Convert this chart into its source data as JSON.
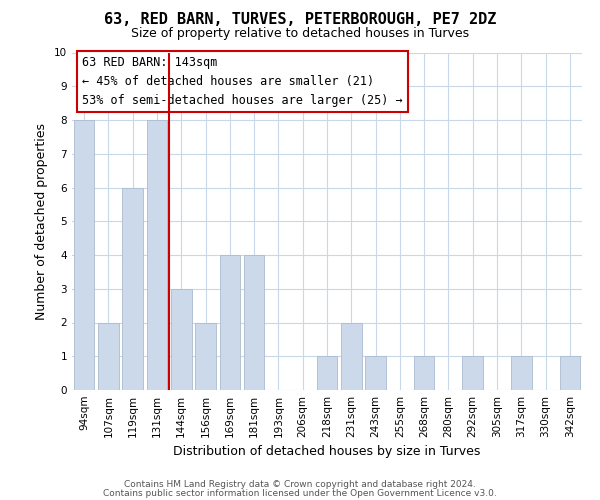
{
  "title": "63, RED BARN, TURVES, PETERBOROUGH, PE7 2DZ",
  "subtitle": "Size of property relative to detached houses in Turves",
  "xlabel": "Distribution of detached houses by size in Turves",
  "ylabel": "Number of detached properties",
  "bar_labels": [
    "94sqm",
    "107sqm",
    "119sqm",
    "131sqm",
    "144sqm",
    "156sqm",
    "169sqm",
    "181sqm",
    "193sqm",
    "206sqm",
    "218sqm",
    "231sqm",
    "243sqm",
    "255sqm",
    "268sqm",
    "280sqm",
    "292sqm",
    "305sqm",
    "317sqm",
    "330sqm",
    "342sqm"
  ],
  "bar_values": [
    8,
    2,
    6,
    8,
    3,
    2,
    4,
    4,
    0,
    0,
    1,
    2,
    1,
    0,
    1,
    0,
    1,
    0,
    1,
    0,
    1
  ],
  "bar_color": "#ccd9ea",
  "bar_edge_color": "#aabbd0",
  "vline_color": "#cc0000",
  "annotation_title": "63 RED BARN: 143sqm",
  "annotation_line1": "← 45% of detached houses are smaller (21)",
  "annotation_line2": "53% of semi-detached houses are larger (25) →",
  "annotation_box_color": "#ffffff",
  "annotation_box_edge": "#cc0000",
  "ylim": [
    0,
    10
  ],
  "yticks": [
    0,
    1,
    2,
    3,
    4,
    5,
    6,
    7,
    8,
    9,
    10
  ],
  "footer1": "Contains HM Land Registry data © Crown copyright and database right 2024.",
  "footer2": "Contains public sector information licensed under the Open Government Licence v3.0.",
  "bg_color": "#ffffff",
  "grid_color": "#c8d8e8",
  "title_fontsize": 11,
  "subtitle_fontsize": 9,
  "axis_label_fontsize": 9,
  "tick_fontsize": 7.5,
  "annotation_fontsize": 8.5,
  "footer_fontsize": 6.5
}
